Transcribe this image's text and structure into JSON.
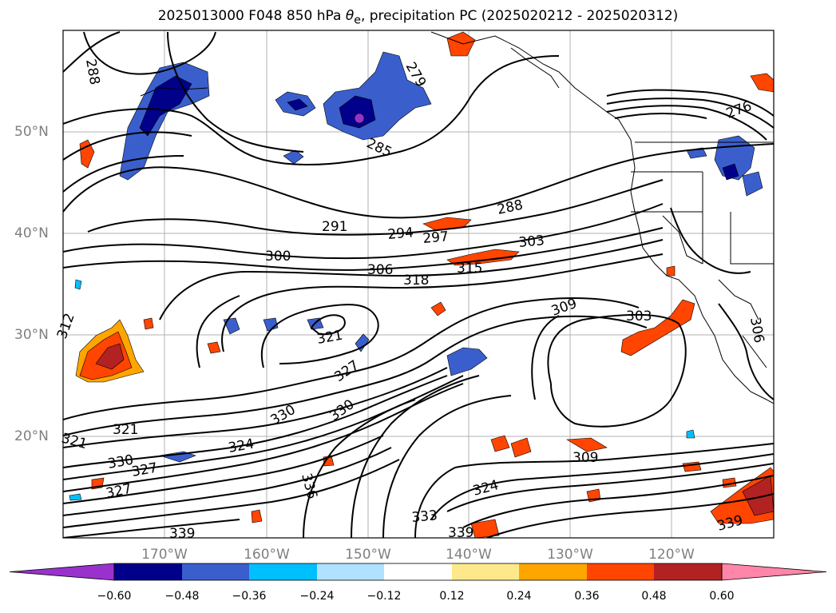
{
  "title": {
    "prefix": "2025013000 F048 850 hPa ",
    "symbol": "θ",
    "subscript": "e",
    "suffix": ", precipitation PC (2025020212 - 2025020312)"
  },
  "axes": {
    "x_labels": [
      "170°W",
      "160°W",
      "150°W",
      "140°W",
      "130°W",
      "120°W"
    ],
    "y_labels": [
      "50°N",
      "40°N",
      "30°N",
      "20°N"
    ]
  },
  "contour_labels": [
    "288",
    "279",
    "276",
    "285",
    "288",
    "291",
    "294",
    "297",
    "303",
    "300",
    "306",
    "315",
    "318",
    "312",
    "303",
    "321",
    "327",
    "330",
    "330",
    "321",
    "321",
    "324",
    "330",
    "327",
    "327",
    "336",
    "309",
    "324",
    "333",
    "339",
    "339",
    "339",
    "309",
    "306"
  ],
  "colorbar": {
    "ticks": [
      "−0.60",
      "−0.48",
      "−0.36",
      "−0.24",
      "−0.12",
      "0.12",
      "0.24",
      "0.36",
      "0.48",
      "0.60"
    ],
    "colors": [
      "#9932cc",
      "#00008b",
      "#3a5fcd",
      "#00bfff",
      "#b0e2ff",
      "#ffffff",
      "#fde98b",
      "#ffa500",
      "#ff4500",
      "#b22222",
      "#ff86a8"
    ]
  }
}
